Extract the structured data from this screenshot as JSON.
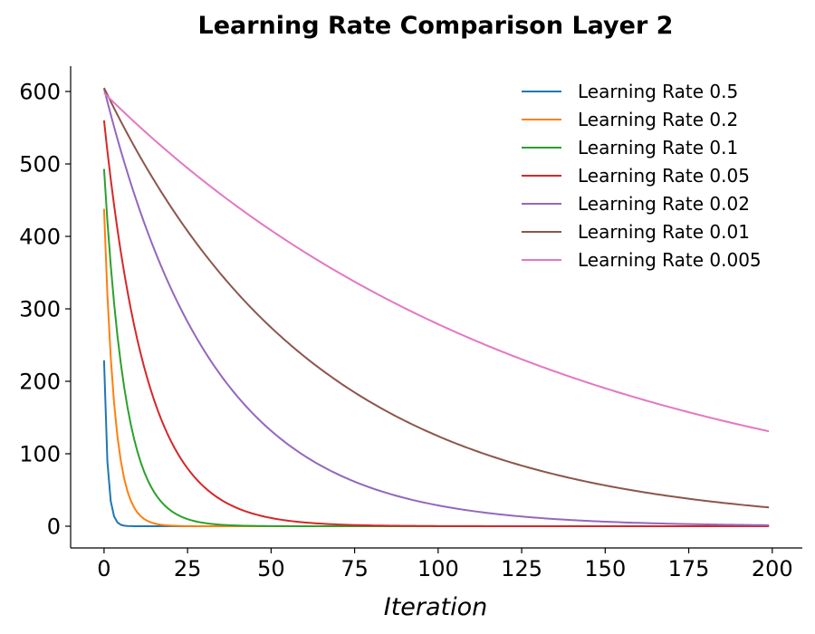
{
  "chart_data": {
    "type": "line",
    "title": "Learning Rate Comparison Layer 2",
    "xlabel": "Iteration",
    "ylabel": "",
    "xlim": [
      -10,
      209
    ],
    "ylim": [
      -30,
      635
    ],
    "xticks": [
      0,
      25,
      50,
      75,
      100,
      125,
      150,
      175,
      200
    ],
    "yticks": [
      0,
      100,
      200,
      300,
      400,
      500,
      600
    ],
    "legend_position": "top-right",
    "grid": false,
    "series": [
      {
        "name": "Learning Rate 0.5",
        "color": "#1f77b4",
        "start": 229,
        "decay": 0.39,
        "x_end": 199
      },
      {
        "name": "Learning Rate 0.2",
        "color": "#ff7f0e",
        "start": 438,
        "decay": 0.73,
        "x_end": 199
      },
      {
        "name": "Learning Rate 0.1",
        "color": "#2ca02c",
        "start": 493,
        "decay": 0.855,
        "x_end": 199
      },
      {
        "name": "Learning Rate 0.05",
        "color": "#d62728",
        "start": 560,
        "decay": 0.925,
        "x_end": 199
      },
      {
        "name": "Learning Rate 0.02",
        "color": "#9467bd",
        "start": 604,
        "decay": 0.97,
        "x_end": 199
      },
      {
        "name": "Learning Rate 0.01",
        "color": "#8c564b",
        "start": 605,
        "decay": 0.9843,
        "x_end": 199
      },
      {
        "name": "Learning Rate 0.005",
        "color": "#e377c2",
        "start": 598,
        "decay": 0.9924,
        "x_end": 199
      }
    ]
  }
}
